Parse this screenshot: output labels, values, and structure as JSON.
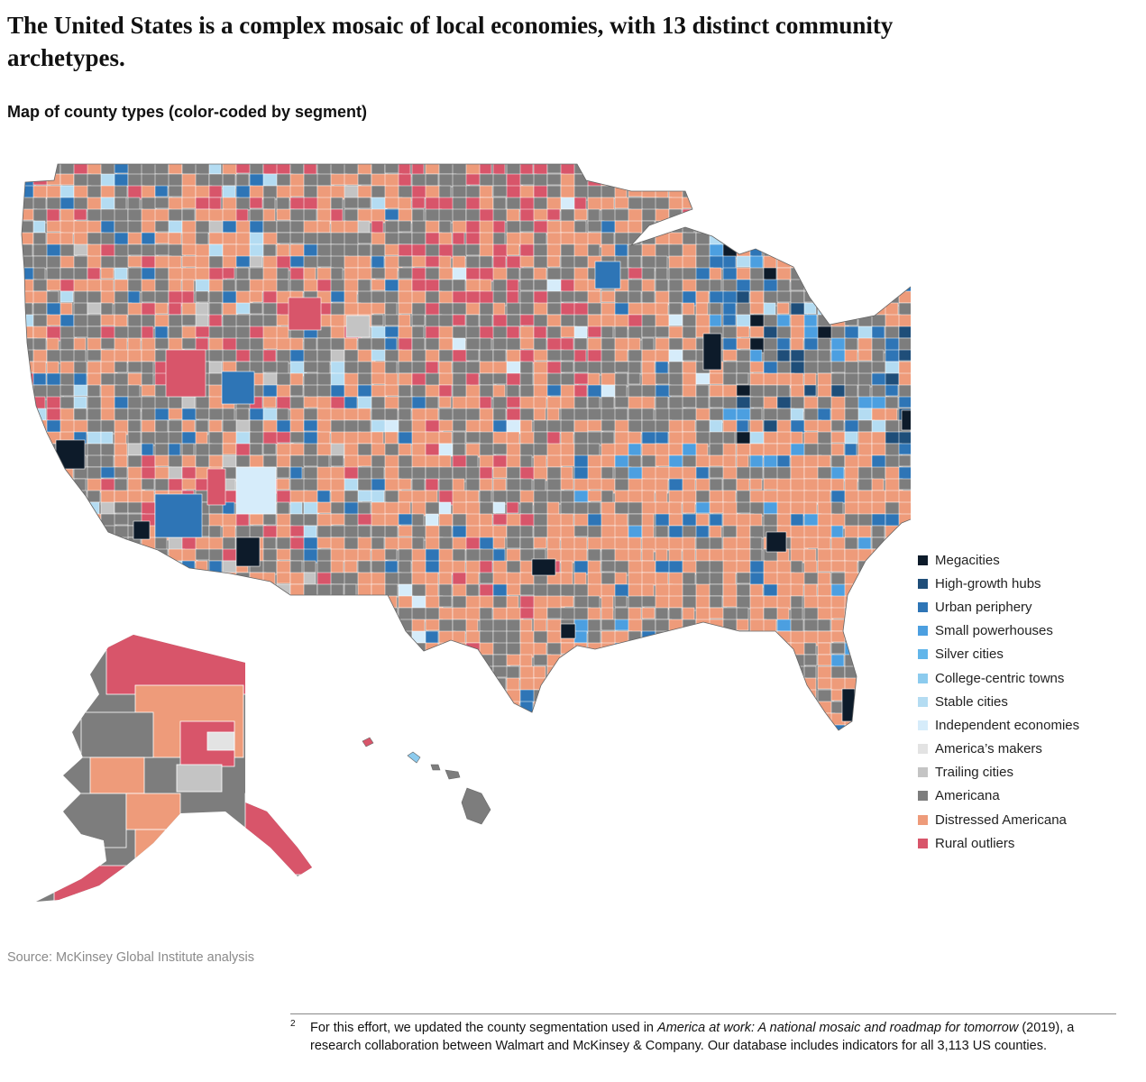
{
  "title": "The United States is a complex mosaic of local economies, with 13 distinct community archetypes.",
  "subtitle": "Map of county types (color-coded by segment)",
  "legend": [
    {
      "label": "Megacities",
      "color": "#0d1b2a"
    },
    {
      "label": "High-growth hubs",
      "color": "#1f4e79"
    },
    {
      "label": "Urban periphery",
      "color": "#2e75b6"
    },
    {
      "label": "Small powerhouses",
      "color": "#4c9fe0"
    },
    {
      "label": "Silver cities",
      "color": "#62b6ea"
    },
    {
      "label": "College-centric towns",
      "color": "#8ccbee"
    },
    {
      "label": "Stable cities",
      "color": "#b4dcf2"
    },
    {
      "label": "Independent economies",
      "color": "#d6ecfa"
    },
    {
      "label": "America’s makers",
      "color": "#e3e3e3"
    },
    {
      "label": "Trailing cities",
      "color": "#c4c4c4"
    },
    {
      "label": "Americana",
      "color": "#7d7d7d"
    },
    {
      "label": "Distressed Americana",
      "color": "#ee9b7a"
    },
    {
      "label": "Rural outliers",
      "color": "#d8556a"
    }
  ],
  "source": "Source: McKinsey Global Institute analysis",
  "footnote": {
    "mark": "2",
    "text_before": "For this effort, we updated the county segmentation used in ",
    "italic": "America at work: A national mosaic and roadmap for tomorrow",
    "text_after": " (2019), a research collaboration between Walmart and McKinsey & Company. Our database includes indicators for all 3,113 US counties."
  }
}
